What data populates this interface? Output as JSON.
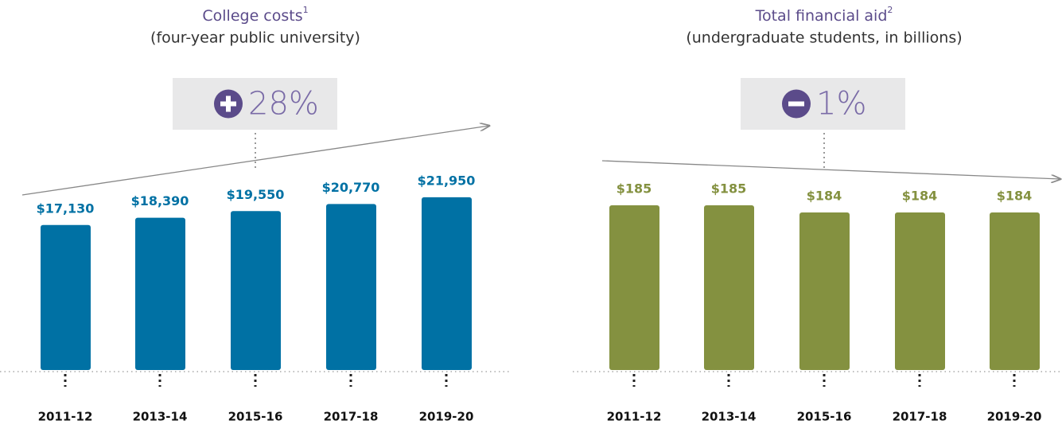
{
  "chart_data": [
    {
      "type": "bar",
      "title": "College costs",
      "title_note": "1",
      "subtitle": "(four-year public university)",
      "annotation": "28%",
      "annotation_sign": "plus",
      "categories": [
        "2011-12",
        "2013-14",
        "2015-16",
        "2017-18",
        "2019-20"
      ],
      "values": [
        17130,
        18390,
        19550,
        20770,
        21950
      ],
      "value_labels": [
        "$17,130",
        "$18,390",
        "$19,550",
        "$20,770",
        "$21,950"
      ],
      "color": "#0071a4",
      "ylim": [
        -8000,
        24000
      ]
    },
    {
      "type": "bar",
      "title": "Total financial aid",
      "title_note": "2",
      "subtitle": "(undergraduate students, in billions)",
      "annotation": "1%",
      "annotation_sign": "minus",
      "categories": [
        "2011-12",
        "2013-14",
        "2015-16",
        "2017-18",
        "2019-20"
      ],
      "values": [
        185,
        185,
        184,
        184,
        184
      ],
      "value_labels": [
        "$185",
        "$185",
        "$184",
        "$184",
        "$184"
      ],
      "color": "#849140",
      "ylim": [
        162,
        187
      ]
    }
  ]
}
